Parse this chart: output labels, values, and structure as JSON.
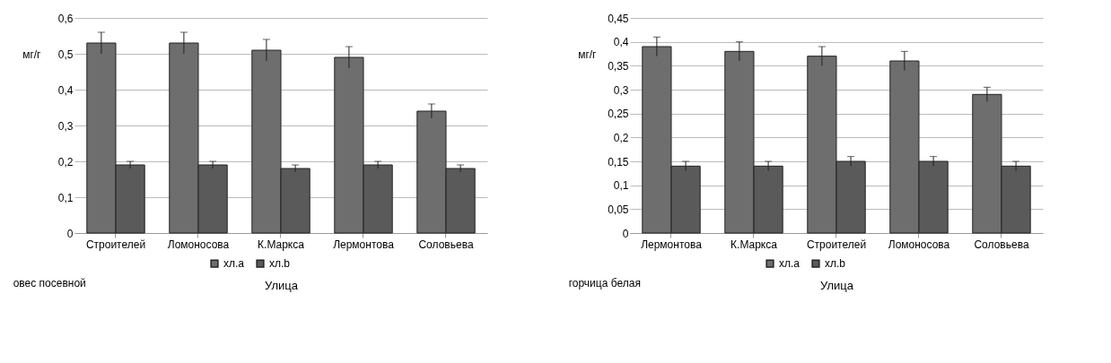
{
  "chart_data": [
    {
      "type": "bar",
      "ylabel": "мг/г",
      "xlabel": "Улица",
      "annotations": [
        "овес посевной"
      ],
      "categories": [
        "Строителей",
        "Ломоносова",
        "К.Маркса",
        "Лермонтова",
        "Соловьева"
      ],
      "ylim": [
        0,
        0.6
      ],
      "yticks": [
        {
          "value": 0,
          "label": "0"
        },
        {
          "value": 0.1,
          "label": "0,1"
        },
        {
          "value": 0.2,
          "label": "0,2"
        },
        {
          "value": 0.3,
          "label": "0,3"
        },
        {
          "value": 0.4,
          "label": "0,4"
        },
        {
          "value": 0.5,
          "label": "0,5"
        },
        {
          "value": 0.6,
          "label": "0,6"
        }
      ],
      "grid": "y",
      "legend": "bottom",
      "series": [
        {
          "name": "хл.a",
          "color": "#6e6e6e",
          "values": [
            0.53,
            0.53,
            0.51,
            0.49,
            0.34
          ],
          "errors": [
            0.03,
            0.03,
            0.03,
            0.03,
            0.02
          ]
        },
        {
          "name": "хл.b",
          "color": "#5a5a5a",
          "values": [
            0.19,
            0.19,
            0.18,
            0.19,
            0.18
          ],
          "errors": [
            0.01,
            0.01,
            0.01,
            0.01,
            0.01
          ]
        }
      ]
    },
    {
      "type": "bar",
      "ylabel": "мг/г",
      "xlabel": "Улица",
      "annotations": [
        "горчица белая"
      ],
      "categories": [
        "Лермонтова",
        "К.Маркса",
        "Строителей",
        "Ломоносова",
        "Соловьева"
      ],
      "ylim": [
        0,
        0.45
      ],
      "yticks": [
        {
          "value": 0,
          "label": "0"
        },
        {
          "value": 0.05,
          "label": "0,05"
        },
        {
          "value": 0.1,
          "label": "0,1"
        },
        {
          "value": 0.15,
          "label": "0,15"
        },
        {
          "value": 0.2,
          "label": "0,2"
        },
        {
          "value": 0.25,
          "label": "0,25"
        },
        {
          "value": 0.3,
          "label": "0,3"
        },
        {
          "value": 0.35,
          "label": "0,35"
        },
        {
          "value": 0.4,
          "label": "0,4"
        },
        {
          "value": 0.45,
          "label": "0,45"
        }
      ],
      "grid": "y",
      "legend": "bottom",
      "series": [
        {
          "name": "хл.a",
          "color": "#6e6e6e",
          "values": [
            0.39,
            0.38,
            0.37,
            0.36,
            0.29
          ],
          "errors": [
            0.02,
            0.02,
            0.02,
            0.02,
            0.015
          ]
        },
        {
          "name": "хл.b",
          "color": "#5a5a5a",
          "values": [
            0.14,
            0.14,
            0.15,
            0.15,
            0.14
          ],
          "errors": [
            0.01,
            0.01,
            0.01,
            0.01,
            0.01
          ]
        }
      ]
    }
  ]
}
